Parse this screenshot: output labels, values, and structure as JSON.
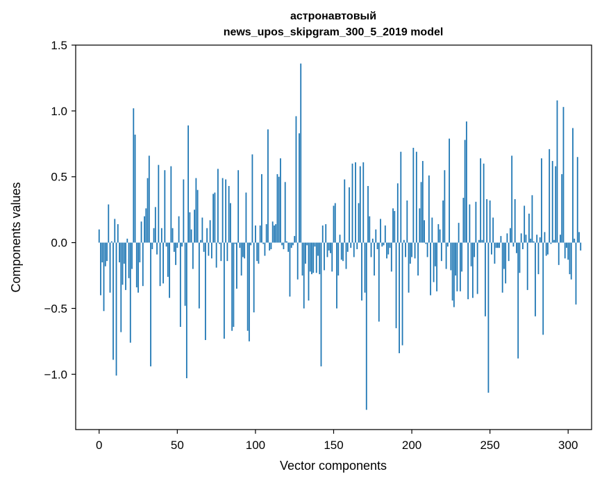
{
  "chart_data": {
    "type": "bar",
    "title_line1": "астронавтовый",
    "title_line2": "news_upos_skipgram_300_5_2019 model",
    "xlabel": "Vector components",
    "ylabel": "Components values",
    "xlim": [
      -15,
      315
    ],
    "ylim": [
      -1.42,
      1.5
    ],
    "x_ticks": [
      0,
      50,
      100,
      150,
      200,
      250,
      300
    ],
    "y_ticks": [
      -1.0,
      -0.5,
      0.0,
      0.5,
      1.0,
      1.5
    ],
    "y_tick_labels": [
      "−1.0",
      "−0.5",
      "0.0",
      "0.5",
      "1.0",
      "1.5"
    ],
    "bar_color": "#1f77b4",
    "values": [
      0.1,
      -0.4,
      -0.15,
      -0.52,
      -0.18,
      -0.14,
      0.29,
      -0.38,
      0.01,
      -0.89,
      0.18,
      -1.01,
      0.14,
      -0.15,
      -0.68,
      -0.32,
      -0.16,
      -0.36,
      0.03,
      -0.27,
      -0.76,
      -0.2,
      1.02,
      0.82,
      -0.34,
      -0.38,
      -0.15,
      0.16,
      -0.33,
      0.2,
      0.26,
      0.49,
      0.66,
      -0.94,
      -0.05,
      0.11,
      0.27,
      -0.09,
      0.59,
      -0.33,
      0.11,
      -0.31,
      0.55,
      -0.03,
      -0.26,
      -0.42,
      0.58,
      0.11,
      -0.07,
      -0.17,
      -0.04,
      0.2,
      -0.64,
      -0.03,
      0.48,
      -0.48,
      -1.03,
      0.89,
      0.23,
      0.1,
      -0.2,
      0.25,
      0.49,
      0.4,
      -0.5,
      0.02,
      0.19,
      -0.07,
      -0.74,
      0.11,
      -0.1,
      0.17,
      -0.12,
      0.37,
      0.38,
      -0.19,
      0.56,
      -0.01,
      -0.14,
      0.49,
      -0.73,
      0.48,
      -0.14,
      0.43,
      0.3,
      -0.67,
      -0.64,
      -0.01,
      -0.35,
      0.55,
      -0.04,
      -0.25,
      -0.11,
      -0.12,
      0.38,
      -0.67,
      -0.75,
      -0.02,
      0.67,
      -0.53,
      0.13,
      -0.14,
      -0.16,
      0.13,
      0.52,
      -0.01,
      -0.1,
      0.14,
      0.86,
      -0.06,
      -0.05,
      0.16,
      0.13,
      0.14,
      0.52,
      0.5,
      0.64,
      -0.02,
      -0.05,
      0.46,
      0.01,
      -0.07,
      -0.41,
      -0.04,
      -0.02,
      0.05,
      0.96,
      -0.28,
      0.83,
      1.36,
      -0.25,
      -0.5,
      -0.16,
      -0.02,
      -0.44,
      -0.22,
      -0.24,
      -0.23,
      -0.03,
      -0.23,
      -0.1,
      -0.24,
      -0.94,
      0.13,
      -0.21,
      0.14,
      -0.11,
      -0.06,
      -0.08,
      -0.22,
      0.28,
      0.3,
      -0.5,
      -0.25,
      0.06,
      -0.13,
      -0.14,
      0.48,
      -0.2,
      -0.07,
      0.42,
      -0.04,
      0.6,
      -0.11,
      0.61,
      -0.05,
      0.3,
      0.58,
      -0.44,
      0.61,
      -0.38,
      -1.27,
      0.43,
      0.2,
      -0.11,
      0.03,
      -0.25,
      0.1,
      -0.05,
      -0.6,
      0.18,
      -0.03,
      -0.02,
      0.13,
      -0.12,
      -0.09,
      -0.04,
      -0.22,
      0.26,
      0.24,
      -0.65,
      0.45,
      -0.84,
      0.69,
      -0.78,
      0.02,
      -0.11,
      0.32,
      -0.38,
      -0.16,
      -0.11,
      0.72,
      -0.12,
      0.69,
      -0.25,
      0.26,
      0.46,
      0.62,
      0.17,
      -0.01,
      -0.11,
      0.51,
      -0.4,
      0.19,
      -0.3,
      -0.18,
      -0.37,
      0.14,
      0.1,
      -0.14,
      0.32,
      0.55,
      -0.2,
      -0.03,
      0.79,
      -0.21,
      -0.44,
      -0.49,
      -0.25,
      -0.37,
      0.15,
      -0.37,
      -0.22,
      0.34,
      0.78,
      0.92,
      -0.43,
      0.29,
      -0.18,
      -0.42,
      -0.11,
      0.31,
      -0.39,
      0.02,
      0.64,
      0.02,
      0.6,
      -0.56,
      0.33,
      -1.14,
      0.32,
      -0.09,
      0.19,
      -0.16,
      -0.04,
      -0.04,
      -0.04,
      0.05,
      -0.38,
      -0.2,
      -0.31,
      0.07,
      -0.14,
      0.11,
      0.66,
      -0.03,
      0.33,
      -0.08,
      -0.88,
      -0.23,
      0.07,
      -0.05,
      0.28,
      0.06,
      -0.36,
      0.22,
      0.03,
      0.36,
      0.01,
      -0.56,
      0.06,
      -0.24,
      0.04,
      0.64,
      -0.7,
      0.08,
      -0.1,
      -0.09,
      0.71,
      -0.01,
      0.62,
      0.02,
      0.58,
      1.08,
      -0.17,
      0.06,
      0.52,
      1.03,
      -0.12,
      -0.04,
      -0.13,
      -0.24,
      -0.28,
      0.87,
      0.03,
      -0.47,
      0.65,
      0.08,
      -0.06
    ]
  }
}
